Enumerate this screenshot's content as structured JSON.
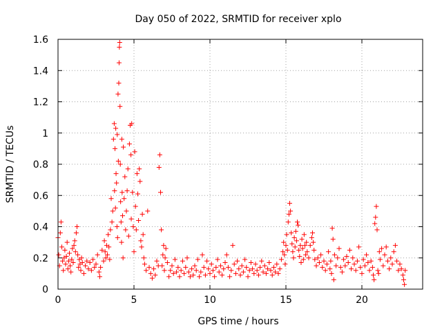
{
  "chart_data": {
    "type": "scatter",
    "title": "Day 050 of 2022, SRMTID for receiver xplo",
    "xlabel": "GPS time / hours",
    "ylabel": "SRMTID / TECUs",
    "xlim": [
      0,
      24
    ],
    "ylim": [
      0,
      1.6
    ],
    "x_ticks": [
      0,
      5,
      10,
      15,
      20
    ],
    "x_tick_labels": [
      "0",
      "5",
      "10",
      "15",
      "20"
    ],
    "y_ticks": [
      0,
      0.2,
      0.4,
      0.6,
      0.8,
      1.0,
      1.2,
      1.4,
      1.6
    ],
    "y_tick_labels": [
      "0",
      "0.2",
      "0.4",
      "0.6",
      "0.8",
      "1",
      "1.2",
      "1.4",
      "1.6"
    ],
    "grid": true,
    "marker": "+",
    "marker_color": "#ff0000",
    "series": [
      {
        "name": "SRMTID",
        "points": [
          [
            0.0,
            0.33
          ],
          [
            0.05,
            0.22
          ],
          [
            0.1,
            0.15
          ],
          [
            0.15,
            0.36
          ],
          [
            0.2,
            0.43
          ],
          [
            0.25,
            0.27
          ],
          [
            0.3,
            0.18
          ],
          [
            0.35,
            0.12
          ],
          [
            0.4,
            0.2
          ],
          [
            0.45,
            0.25
          ],
          [
            0.5,
            0.16
          ],
          [
            0.55,
            0.21
          ],
          [
            0.6,
            0.3
          ],
          [
            0.65,
            0.13
          ],
          [
            0.7,
            0.18
          ],
          [
            0.75,
            0.23
          ],
          [
            0.8,
            0.15
          ],
          [
            0.85,
            0.11
          ],
          [
            0.9,
            0.19
          ],
          [
            0.95,
            0.26
          ],
          [
            1.0,
            0.17
          ],
          [
            1.05,
            0.28
          ],
          [
            1.1,
            0.31
          ],
          [
            1.15,
            0.24
          ],
          [
            1.2,
            0.36
          ],
          [
            1.25,
            0.4
          ],
          [
            1.3,
            0.22
          ],
          [
            1.35,
            0.14
          ],
          [
            1.4,
            0.19
          ],
          [
            1.45,
            0.16
          ],
          [
            1.5,
            0.12
          ],
          [
            1.55,
            0.2
          ],
          [
            1.6,
            0.17
          ],
          [
            1.7,
            0.1
          ],
          [
            1.8,
            0.15
          ],
          [
            1.9,
            0.18
          ],
          [
            2.0,
            0.13
          ],
          [
            2.1,
            0.17
          ],
          [
            2.2,
            0.12
          ],
          [
            2.3,
            0.19
          ],
          [
            2.4,
            0.14
          ],
          [
            2.5,
            0.16
          ],
          [
            2.6,
            0.22
          ],
          [
            2.7,
            0.11
          ],
          [
            2.75,
            0.08
          ],
          [
            2.8,
            0.14
          ],
          [
            2.9,
            0.25
          ],
          [
            3.0,
            0.18
          ],
          [
            3.05,
            0.31
          ],
          [
            3.1,
            0.24
          ],
          [
            3.15,
            0.2
          ],
          [
            3.2,
            0.28
          ],
          [
            3.25,
            0.22
          ],
          [
            3.3,
            0.35
          ],
          [
            3.35,
            0.27
          ],
          [
            3.4,
            0.19
          ],
          [
            3.45,
            0.38
          ],
          [
            3.5,
            0.58
          ],
          [
            3.55,
            0.43
          ],
          [
            3.6,
            0.5
          ],
          [
            3.65,
            0.96
          ],
          [
            3.7,
            1.06
          ],
          [
            3.72,
            0.63
          ],
          [
            3.75,
            0.9
          ],
          [
            3.78,
            0.52
          ],
          [
            3.8,
            1.03
          ],
          [
            3.82,
            0.74
          ],
          [
            3.85,
            0.68
          ],
          [
            3.88,
            0.4
          ],
          [
            3.9,
            0.99
          ],
          [
            3.92,
            0.33
          ],
          [
            3.95,
            1.25
          ],
          [
            3.97,
            0.82
          ],
          [
            4.0,
            1.32
          ],
          [
            4.02,
            1.45
          ],
          [
            4.04,
            1.55
          ],
          [
            4.06,
            1.58
          ],
          [
            4.08,
            1.17
          ],
          [
            4.1,
            0.8
          ],
          [
            4.12,
            0.56
          ],
          [
            4.15,
            0.43
          ],
          [
            4.18,
            0.3
          ],
          [
            4.2,
            0.96
          ],
          [
            4.22,
            0.62
          ],
          [
            4.25,
            0.47
          ],
          [
            4.28,
            0.2
          ],
          [
            4.3,
            0.91
          ],
          [
            4.35,
            0.58
          ],
          [
            4.4,
            0.72
          ],
          [
            4.45,
            0.38
          ],
          [
            4.5,
            0.5
          ],
          [
            4.55,
            0.63
          ],
          [
            4.6,
            0.77
          ],
          [
            4.65,
            0.34
          ],
          [
            4.7,
            0.93
          ],
          [
            4.75,
            1.05
          ],
          [
            4.8,
            0.86
          ],
          [
            4.82,
            0.45
          ],
          [
            4.85,
            1.06
          ],
          [
            4.9,
            0.62
          ],
          [
            4.95,
            0.4
          ],
          [
            5.0,
            0.24
          ],
          [
            5.05,
            0.88
          ],
          [
            5.1,
            0.53
          ],
          [
            5.15,
            0.38
          ],
          [
            5.2,
            0.74
          ],
          [
            5.25,
            0.61
          ],
          [
            5.3,
            0.44
          ],
          [
            5.35,
            0.77
          ],
          [
            5.4,
            0.69
          ],
          [
            5.45,
            0.31
          ],
          [
            5.5,
            0.27
          ],
          [
            5.55,
            0.48
          ],
          [
            5.6,
            0.35
          ],
          [
            5.65,
            0.2
          ],
          [
            5.7,
            0.16
          ],
          [
            5.8,
            0.12
          ],
          [
            5.9,
            0.5
          ],
          [
            6.0,
            0.14
          ],
          [
            6.1,
            0.1
          ],
          [
            6.2,
            0.07
          ],
          [
            6.3,
            0.13
          ],
          [
            6.4,
            0.09
          ],
          [
            6.5,
            0.18
          ],
          [
            6.6,
            0.15
          ],
          [
            6.65,
            0.78
          ],
          [
            6.7,
            0.86
          ],
          [
            6.75,
            0.62
          ],
          [
            6.8,
            0.38
          ],
          [
            6.85,
            0.15
          ],
          [
            6.9,
            0.22
          ],
          [
            6.95,
            0.28
          ],
          [
            7.0,
            0.12
          ],
          [
            7.05,
            0.2
          ],
          [
            7.1,
            0.26
          ],
          [
            7.2,
            0.17
          ],
          [
            7.3,
            0.08
          ],
          [
            7.4,
            0.12
          ],
          [
            7.5,
            0.15
          ],
          [
            7.6,
            0.1
          ],
          [
            7.7,
            0.19
          ],
          [
            7.8,
            0.11
          ],
          [
            7.9,
            0.14
          ],
          [
            8.0,
            0.08
          ],
          [
            8.1,
            0.12
          ],
          [
            8.2,
            0.18
          ],
          [
            8.3,
            0.1
          ],
          [
            8.4,
            0.14
          ],
          [
            8.5,
            0.2
          ],
          [
            8.6,
            0.11
          ],
          [
            8.7,
            0.08
          ],
          [
            8.8,
            0.13
          ],
          [
            8.9,
            0.09
          ],
          [
            9.0,
            0.15
          ],
          [
            9.1,
            0.12
          ],
          [
            9.2,
            0.19
          ],
          [
            9.3,
            0.08
          ],
          [
            9.4,
            0.11
          ],
          [
            9.5,
            0.22
          ],
          [
            9.6,
            0.14
          ],
          [
            9.7,
            0.09
          ],
          [
            9.8,
            0.18
          ],
          [
            9.9,
            0.13
          ],
          [
            10.0,
            0.1
          ],
          [
            10.1,
            0.16
          ],
          [
            10.2,
            0.12
          ],
          [
            10.3,
            0.08
          ],
          [
            10.4,
            0.14
          ],
          [
            10.5,
            0.19
          ],
          [
            10.6,
            0.11
          ],
          [
            10.7,
            0.15
          ],
          [
            10.8,
            0.09
          ],
          [
            10.9,
            0.13
          ],
          [
            11.0,
            0.17
          ],
          [
            11.1,
            0.22
          ],
          [
            11.2,
            0.14
          ],
          [
            11.3,
            0.08
          ],
          [
            11.4,
            0.12
          ],
          [
            11.5,
            0.28
          ],
          [
            11.6,
            0.16
          ],
          [
            11.7,
            0.1
          ],
          [
            11.8,
            0.18
          ],
          [
            11.9,
            0.13
          ],
          [
            12.0,
            0.09
          ],
          [
            12.1,
            0.15
          ],
          [
            12.2,
            0.11
          ],
          [
            12.3,
            0.19
          ],
          [
            12.4,
            0.14
          ],
          [
            12.5,
            0.08
          ],
          [
            12.6,
            0.12
          ],
          [
            12.7,
            0.17
          ],
          [
            12.8,
            0.13
          ],
          [
            12.9,
            0.1
          ],
          [
            13.0,
            0.16
          ],
          [
            13.1,
            0.12
          ],
          [
            13.2,
            0.09
          ],
          [
            13.3,
            0.14
          ],
          [
            13.4,
            0.18
          ],
          [
            13.5,
            0.11
          ],
          [
            13.6,
            0.15
          ],
          [
            13.7,
            0.1
          ],
          [
            13.8,
            0.13
          ],
          [
            13.9,
            0.17
          ],
          [
            14.0,
            0.12
          ],
          [
            14.1,
            0.09
          ],
          [
            14.2,
            0.14
          ],
          [
            14.3,
            0.11
          ],
          [
            14.4,
            0.16
          ],
          [
            14.5,
            0.1
          ],
          [
            14.6,
            0.13
          ],
          [
            14.7,
            0.19
          ],
          [
            14.8,
            0.24
          ],
          [
            14.85,
            0.3
          ],
          [
            14.9,
            0.22
          ],
          [
            14.95,
            0.16
          ],
          [
            15.0,
            0.28
          ],
          [
            15.05,
            0.35
          ],
          [
            15.1,
            0.25
          ],
          [
            15.15,
            0.43
          ],
          [
            15.2,
            0.48
          ],
          [
            15.25,
            0.55
          ],
          [
            15.3,
            0.5
          ],
          [
            15.35,
            0.36
          ],
          [
            15.4,
            0.29
          ],
          [
            15.45,
            0.24
          ],
          [
            15.5,
            0.2
          ],
          [
            15.55,
            0.33
          ],
          [
            15.6,
            0.27
          ],
          [
            15.65,
            0.37
          ],
          [
            15.7,
            0.31
          ],
          [
            15.75,
            0.43
          ],
          [
            15.8,
            0.41
          ],
          [
            15.85,
            0.25
          ],
          [
            15.9,
            0.21
          ],
          [
            15.95,
            0.28
          ],
          [
            16.0,
            0.17
          ],
          [
            16.05,
            0.32
          ],
          [
            16.1,
            0.26
          ],
          [
            16.15,
            0.19
          ],
          [
            16.2,
            0.35
          ],
          [
            16.25,
            0.28
          ],
          [
            16.3,
            0.22
          ],
          [
            16.35,
            0.3
          ],
          [
            16.4,
            0.24
          ],
          [
            16.5,
            0.2
          ],
          [
            16.6,
            0.28
          ],
          [
            16.7,
            0.33
          ],
          [
            16.75,
            0.36
          ],
          [
            16.8,
            0.3
          ],
          [
            16.85,
            0.25
          ],
          [
            16.9,
            0.19
          ],
          [
            17.0,
            0.15
          ],
          [
            17.1,
            0.2
          ],
          [
            17.2,
            0.17
          ],
          [
            17.3,
            0.22
          ],
          [
            17.4,
            0.14
          ],
          [
            17.5,
            0.18
          ],
          [
            17.6,
            0.12
          ],
          [
            17.7,
            0.16
          ],
          [
            17.8,
            0.24
          ],
          [
            17.9,
            0.13
          ],
          [
            17.95,
            0.18
          ],
          [
            18.0,
            0.1
          ],
          [
            18.05,
            0.39
          ],
          [
            18.1,
            0.32
          ],
          [
            18.15,
            0.06
          ],
          [
            18.2,
            0.22
          ],
          [
            18.3,
            0.15
          ],
          [
            18.4,
            0.2
          ],
          [
            18.5,
            0.26
          ],
          [
            18.6,
            0.14
          ],
          [
            18.7,
            0.11
          ],
          [
            18.8,
            0.19
          ],
          [
            18.9,
            0.15
          ],
          [
            19.0,
            0.21
          ],
          [
            19.1,
            0.17
          ],
          [
            19.2,
            0.25
          ],
          [
            19.3,
            0.13
          ],
          [
            19.4,
            0.2
          ],
          [
            19.5,
            0.16
          ],
          [
            19.6,
            0.12
          ],
          [
            19.7,
            0.18
          ],
          [
            19.8,
            0.27
          ],
          [
            19.9,
            0.14
          ],
          [
            20.0,
            0.1
          ],
          [
            20.1,
            0.19
          ],
          [
            20.2,
            0.15
          ],
          [
            20.3,
            0.22
          ],
          [
            20.4,
            0.17
          ],
          [
            20.5,
            0.12
          ],
          [
            20.6,
            0.18
          ],
          [
            20.7,
            0.14
          ],
          [
            20.75,
            0.09
          ],
          [
            20.8,
            0.06
          ],
          [
            20.85,
            0.42
          ],
          [
            20.9,
            0.46
          ],
          [
            20.95,
            0.53
          ],
          [
            21.0,
            0.38
          ],
          [
            21.05,
            0.12
          ],
          [
            21.1,
            0.1
          ],
          [
            21.15,
            0.24
          ],
          [
            21.2,
            0.19
          ],
          [
            21.3,
            0.26
          ],
          [
            21.4,
            0.15
          ],
          [
            21.5,
            0.22
          ],
          [
            21.6,
            0.27
          ],
          [
            21.7,
            0.18
          ],
          [
            21.8,
            0.13
          ],
          [
            21.9,
            0.2
          ],
          [
            22.0,
            0.16
          ],
          [
            22.1,
            0.24
          ],
          [
            22.2,
            0.28
          ],
          [
            22.3,
            0.18
          ],
          [
            22.4,
            0.12
          ],
          [
            22.5,
            0.16
          ],
          [
            22.6,
            0.13
          ],
          [
            22.7,
            0.09
          ],
          [
            22.75,
            0.06
          ],
          [
            22.8,
            0.03
          ],
          [
            22.85,
            0.12
          ]
        ]
      }
    ]
  }
}
